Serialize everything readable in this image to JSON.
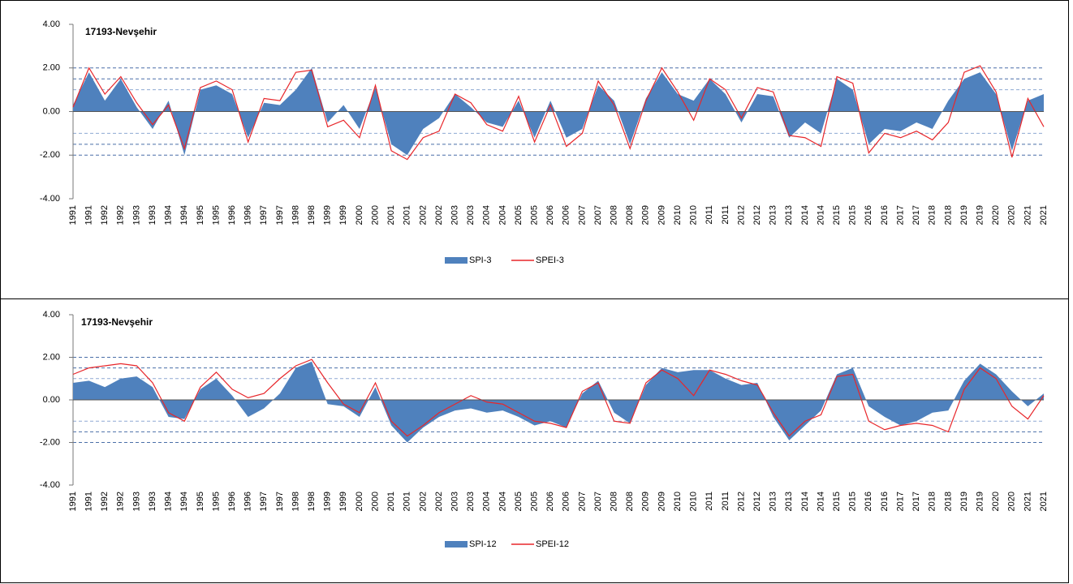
{
  "chart_data": [
    {
      "type": "combo",
      "title": "17193-Nevşehir",
      "categories": [
        "1991",
        "1991",
        "1992",
        "1992",
        "1993",
        "1993",
        "1994",
        "1994",
        "1995",
        "1995",
        "1996",
        "1996",
        "1997",
        "1997",
        "1998",
        "1998",
        "1999",
        "1999",
        "2000",
        "2000",
        "2001",
        "2001",
        "2002",
        "2002",
        "2003",
        "2003",
        "2004",
        "2004",
        "2005",
        "2005",
        "2006",
        "2006",
        "2007",
        "2007",
        "2008",
        "2008",
        "2009",
        "2009",
        "2010",
        "2010",
        "2011",
        "2011",
        "2012",
        "2012",
        "2013",
        "2013",
        "2014",
        "2014",
        "2015",
        "2015",
        "2016",
        "2016",
        "2017",
        "2017",
        "2018",
        "2018",
        "2019",
        "2019",
        "2020",
        "2020",
        "2021",
        "2021"
      ],
      "series": [
        {
          "name": "SPI-3",
          "type": "area",
          "color": "#4f81bd",
          "values": [
            0.3,
            1.8,
            0.5,
            1.5,
            0.2,
            -0.8,
            0.5,
            -2.0,
            1.0,
            1.2,
            0.8,
            -1.2,
            0.4,
            0.3,
            1.0,
            2.0,
            -0.5,
            0.3,
            -0.8,
            1.1,
            -1.5,
            -2.0,
            -0.8,
            -0.3,
            0.8,
            0.2,
            -0.5,
            -0.7,
            0.5,
            -1.2,
            0.5,
            -1.2,
            -0.8,
            1.2,
            0.5,
            -1.5,
            0.6,
            1.8,
            0.8,
            0.5,
            1.5,
            0.8,
            -0.5,
            0.8,
            0.7,
            -1.2,
            -0.5,
            -1.0,
            1.5,
            1.0,
            -1.5,
            -0.8,
            -0.9,
            -0.5,
            -0.8,
            0.5,
            1.5,
            1.8,
            0.8,
            -1.8,
            0.5,
            0.8
          ]
        },
        {
          "name": "SPEI-3",
          "type": "line",
          "color": "#e8262a",
          "values": [
            0.2,
            2.0,
            0.8,
            1.6,
            0.4,
            -0.6,
            0.3,
            -1.7,
            1.1,
            1.4,
            1.0,
            -1.4,
            0.6,
            0.5,
            1.8,
            1.9,
            -0.7,
            -0.4,
            -1.2,
            1.2,
            -1.8,
            -2.2,
            -1.2,
            -0.9,
            0.8,
            0.4,
            -0.6,
            -0.9,
            0.7,
            -1.4,
            0.3,
            -1.6,
            -1.0,
            1.4,
            0.3,
            -1.7,
            0.5,
            2.0,
            0.9,
            -0.4,
            1.5,
            1.0,
            -0.3,
            1.1,
            0.9,
            -1.1,
            -1.2,
            -1.6,
            1.6,
            1.3,
            -1.9,
            -1.0,
            -1.2,
            -0.9,
            -1.3,
            -0.5,
            1.8,
            2.1,
            0.9,
            -2.1,
            0.6,
            -0.7
          ]
        }
      ],
      "ylim": [
        -4,
        4
      ],
      "yticks": [
        {
          "value": -4,
          "label": "-4.00"
        },
        {
          "value": -2,
          "label": "-2.00"
        },
        {
          "value": 0,
          "label": "0.00"
        },
        {
          "value": 2,
          "label": "2.00"
        },
        {
          "value": 4,
          "label": "4.00"
        }
      ],
      "threshold_lines": [
        2,
        1.5,
        1,
        -1,
        -1.5,
        -2
      ]
    },
    {
      "type": "combo",
      "title": "17193-Nevşehir",
      "categories": [
        "1991",
        "1991",
        "1992",
        "1992",
        "1993",
        "1993",
        "1994",
        "1994",
        "1995",
        "1995",
        "1996",
        "1996",
        "1997",
        "1997",
        "1998",
        "1998",
        "1999",
        "1999",
        "2000",
        "2000",
        "2001",
        "2001",
        "2002",
        "2002",
        "2003",
        "2003",
        "2004",
        "2004",
        "2005",
        "2005",
        "2006",
        "2006",
        "2007",
        "2007",
        "2008",
        "2008",
        "2009",
        "2009",
        "2010",
        "2010",
        "2011",
        "2011",
        "2012",
        "2012",
        "2013",
        "2013",
        "2014",
        "2014",
        "2015",
        "2015",
        "2016",
        "2016",
        "2017",
        "2017",
        "2018",
        "2018",
        "2019",
        "2019",
        "2020",
        "2020",
        "2021",
        "2021"
      ],
      "series": [
        {
          "name": "SPI-12",
          "type": "area",
          "color": "#4f81bd",
          "values": [
            0.8,
            0.9,
            0.6,
            1.0,
            1.1,
            0.6,
            -0.8,
            -0.9,
            0.5,
            1.0,
            0.2,
            -0.8,
            -0.4,
            0.3,
            1.5,
            1.8,
            -0.2,
            -0.3,
            -0.8,
            0.6,
            -1.2,
            -2.0,
            -1.3,
            -0.8,
            -0.5,
            -0.4,
            -0.6,
            -0.5,
            -0.8,
            -1.2,
            -1.0,
            -1.3,
            0.3,
            0.9,
            -0.6,
            -1.1,
            0.7,
            1.5,
            1.3,
            1.4,
            1.4,
            1.0,
            0.7,
            0.8,
            -0.8,
            -1.9,
            -1.2,
            -0.5,
            1.2,
            1.5,
            -0.3,
            -0.8,
            -1.2,
            -1.0,
            -0.6,
            -0.5,
            0.9,
            1.7,
            1.2,
            0.4,
            -0.3,
            0.3
          ]
        },
        {
          "name": "SPEI-12",
          "type": "line",
          "color": "#e8262a",
          "values": [
            1.2,
            1.5,
            1.6,
            1.7,
            1.6,
            0.8,
            -0.6,
            -1.0,
            0.6,
            1.3,
            0.5,
            0.1,
            0.3,
            1.0,
            1.6,
            1.9,
            0.8,
            -0.2,
            -0.6,
            0.8,
            -1.0,
            -1.7,
            -1.2,
            -0.6,
            -0.2,
            0.2,
            -0.1,
            -0.2,
            -0.6,
            -1.0,
            -1.1,
            -1.3,
            0.4,
            0.8,
            -1.0,
            -1.1,
            0.8,
            1.4,
            1.0,
            0.2,
            1.4,
            1.2,
            0.9,
            0.7,
            -0.6,
            -1.7,
            -1.0,
            -0.7,
            1.1,
            1.2,
            -1.0,
            -1.4,
            -1.2,
            -1.1,
            -1.2,
            -1.5,
            0.5,
            1.5,
            1.0,
            -0.3,
            -0.9,
            0.2
          ]
        }
      ],
      "ylim": [
        -4,
        4
      ],
      "yticks": [
        {
          "value": -4,
          "label": "-4.00"
        },
        {
          "value": -2,
          "label": "-2.00"
        },
        {
          "value": 0,
          "label": "0.00"
        },
        {
          "value": 2,
          "label": "2.00"
        },
        {
          "value": 4,
          "label": "4.00"
        }
      ],
      "threshold_lines": [
        2,
        1.5,
        1,
        -1,
        -1.5,
        -2
      ]
    }
  ]
}
